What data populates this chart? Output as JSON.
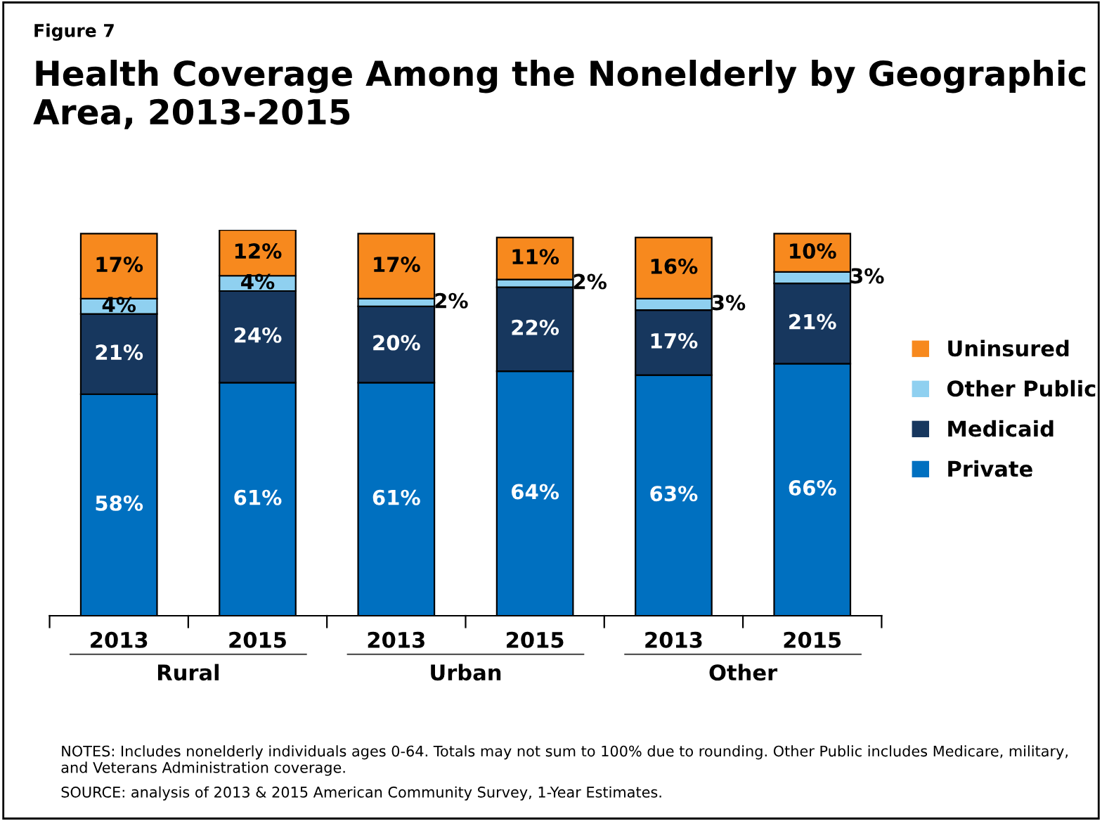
{
  "chart_data": {
    "type": "bar",
    "stacked": true,
    "title": "Health Coverage Among the Nonelderly by Geographic Area, 2013-2015",
    "categories": [
      "2013",
      "2015",
      "2013",
      "2015",
      "2013",
      "2015"
    ],
    "series": [
      {
        "name": "Private",
        "color": "#0070c0",
        "values": [
          58,
          61,
          61,
          64,
          63,
          66
        ],
        "value_labels": [
          "58%",
          "61%",
          "61%",
          "64%",
          "63%",
          "66%"
        ]
      },
      {
        "name": "Medicaid",
        "color": "#17375e",
        "values": [
          21,
          24,
          20,
          22,
          17,
          21
        ],
        "value_labels": [
          "21%",
          "24%",
          "20%",
          "22%",
          "17%",
          "21%"
        ]
      },
      {
        "name": "Other Public",
        "color": "#8fd0f0",
        "values": [
          4,
          4,
          2,
          2,
          3,
          3
        ],
        "value_labels": [
          "4%",
          "4%",
          "2%",
          "2%",
          "3%",
          "3%"
        ]
      },
      {
        "name": "Uninsured",
        "color": "#f7891e",
        "values": [
          17,
          12,
          17,
          11,
          16,
          10
        ],
        "value_labels": [
          "17%",
          "12%",
          "17%",
          "11%",
          "16%",
          "10%"
        ]
      }
    ],
    "legend": "right",
    "grid": false,
    "annotations": [
      "Figure 7",
      "Rural",
      "Urban",
      "Other",
      "NOTES: Includes nonelderly individuals ages 0-64. Totals may not sum to 100% due to rounding. Other Public includes Medicare, military, and Veterans Administration coverage.",
      "SOURCE: analysis of 2013 & 2015 American Community Survey, 1-Year Estimates."
    ]
  }
}
